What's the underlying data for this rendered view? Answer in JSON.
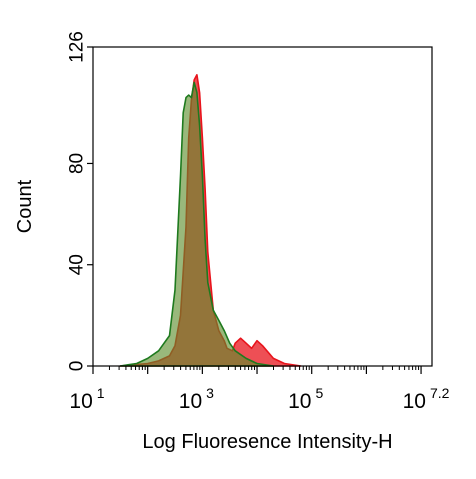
{
  "chart_data": {
    "type": "area",
    "xlabel": "Log Fluoresence Intensity-H",
    "ylabel": "Count",
    "x_scale": "log",
    "xlim": [
      1,
      7.2
    ],
    "ylim": [
      0,
      126
    ],
    "grid": false,
    "x_ticks": [
      {
        "base": "10",
        "exp": "1",
        "value": 1
      },
      {
        "base": "10",
        "exp": "3",
        "value": 3
      },
      {
        "base": "10",
        "exp": "5",
        "value": 5
      },
      {
        "base": "10",
        "exp": "7.2",
        "value": 7.2
      }
    ],
    "y_ticks": [
      {
        "label": "0",
        "value": 0
      },
      {
        "label": "40",
        "value": 40
      },
      {
        "label": "80",
        "value": 80
      },
      {
        "label": "126",
        "value": 126
      }
    ],
    "series": [
      {
        "color": "#e8141c",
        "fill": "#e8141c",
        "x": [
          1.5,
          2.0,
          2.2,
          2.4,
          2.5,
          2.6,
          2.7,
          2.75,
          2.8,
          2.85,
          2.9,
          2.95,
          3.0,
          3.05,
          3.1,
          3.2,
          3.3,
          3.4,
          3.45,
          3.55,
          3.6,
          3.7,
          3.8,
          3.9,
          4.0,
          4.1,
          4.3,
          4.5,
          4.8
        ],
        "values": [
          0,
          1,
          2,
          4,
          8,
          20,
          55,
          90,
          105,
          113,
          115,
          108,
          90,
          70,
          45,
          22,
          14,
          10,
          7,
          6,
          9,
          11,
          9,
          7,
          10,
          8,
          3,
          1,
          0
        ]
      },
      {
        "color": "#1e7a1e",
        "fill": "#5b8c2a",
        "x": [
          1.5,
          1.8,
          2.0,
          2.2,
          2.4,
          2.5,
          2.6,
          2.65,
          2.7,
          2.75,
          2.8,
          2.85,
          2.9,
          2.95,
          3.0,
          3.05,
          3.1,
          3.2,
          3.3,
          3.4,
          3.5,
          3.6,
          3.8,
          4.0,
          4.3
        ],
        "values": [
          0,
          1,
          3,
          6,
          12,
          30,
          75,
          100,
          106,
          107,
          106,
          112,
          108,
          95,
          75,
          50,
          33,
          22,
          18,
          14,
          9,
          6,
          3,
          1,
          0
        ]
      }
    ]
  }
}
